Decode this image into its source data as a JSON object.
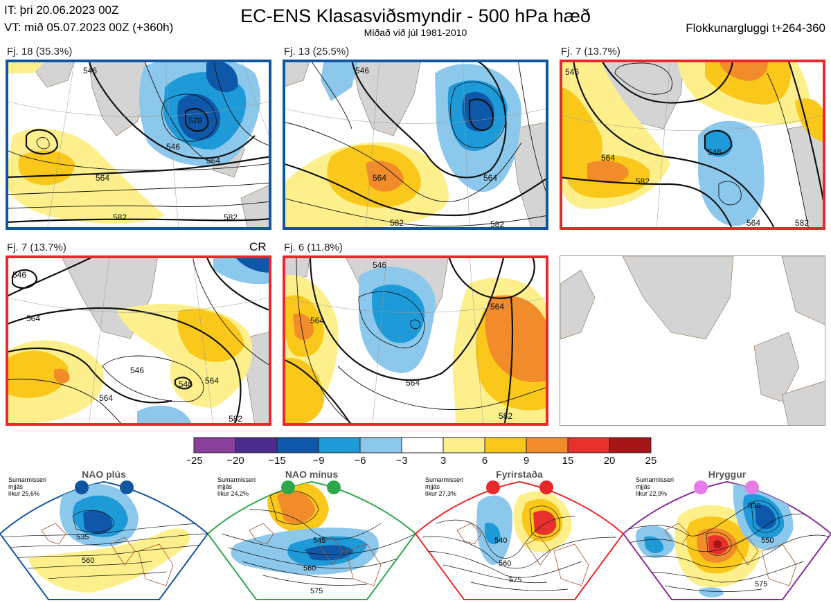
{
  "header": {
    "it_line": "IT: þri 20.06.2023 00Z",
    "vt_line": "VT: mið 05.07.2023 00Z  (+360h)",
    "title": "EC-ENS Klasasviðsmyndir - 500 hPa hæð",
    "subtitle": "Miðað við júl 1981-2010",
    "window": "Flokkunargluggi t+264-360"
  },
  "panels": [
    {
      "label": "Fj. 18 (35.3%)",
      "frame_color": "#1155a0",
      "contour_labels": [
        "546",
        "528",
        "546",
        "564",
        "564",
        "582",
        "582"
      ]
    },
    {
      "label": "Fj. 13 (25.5%)",
      "frame_color": "#1155a0",
      "contour_labels": [
        "546",
        "564",
        "564",
        "582",
        "582"
      ]
    },
    {
      "label": "Fj. 7 (13.7%)",
      "frame_color": "#e8282a",
      "contour_labels": [
        "546",
        "564",
        "582",
        "546",
        "564",
        "582"
      ]
    },
    {
      "label": "Fj. 7 (13.7%)",
      "frame_color": "#e8282a",
      "extra": "CR",
      "contour_labels": [
        "546",
        "564",
        "546",
        "564",
        "546",
        "564",
        "582"
      ]
    },
    {
      "label": "Fj. 6 (11.8%)",
      "frame_color": "#e8282a",
      "contour_labels": [
        "546",
        "564",
        "564",
        "564",
        "582"
      ]
    }
  ],
  "colorbar": {
    "ticks": [
      "−25",
      "−20",
      "−15",
      "−9",
      "−6",
      "−3",
      "3",
      "6",
      "9",
      "15",
      "20",
      "25"
    ],
    "colors": [
      "#8a3f9c",
      "#4a2d8f",
      "#0f57a8",
      "#1e9ad9",
      "#8cc8ec",
      "#ffffff",
      "#fdf08c",
      "#f9c81a",
      "#f28b2a",
      "#e8312c",
      "#a81519"
    ]
  },
  "regimes": [
    {
      "name": "NAO plús",
      "season": "Sumarmisseri",
      "window": "mjjás",
      "prob": "líkur 25,6%",
      "color": "#1155a0",
      "dot_color": "#1155a0",
      "contour_labels": [
        "535",
        "560"
      ]
    },
    {
      "name": "NAO mínus",
      "season": "Sumarmisseri",
      "window": "mjjás",
      "prob": "líkur 24,2%",
      "color": "#2ca84a",
      "dot_color": "#2ca84a",
      "contour_labels": [
        "545",
        "560",
        "575"
      ]
    },
    {
      "name": "Fyrirstaða",
      "season": "Sumarmisseri",
      "window": "mjjás",
      "prob": "líkur 27,3%",
      "color": "#e8282a",
      "dot_color": "#e8282a",
      "contour_labels": [
        "540",
        "560",
        "575"
      ]
    },
    {
      "name": "Hryggur",
      "season": "Sumarmisseri",
      "window": "mjjás",
      "prob": "líkur 22,9%",
      "color": "#8a2a9c",
      "dot_color": "#e67de6",
      "contour_labels": [
        "530",
        "550",
        "575"
      ]
    }
  ]
}
